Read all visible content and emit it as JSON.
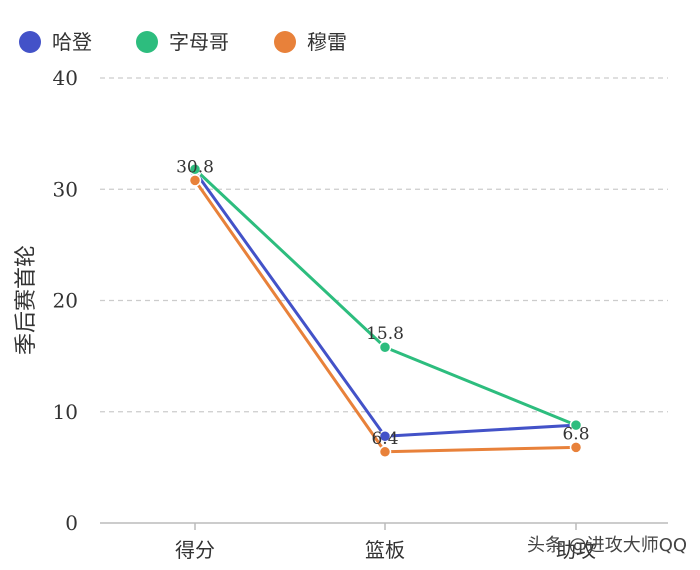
{
  "chart_data": {
    "type": "line",
    "title": "",
    "xlabel": "",
    "ylabel": "季后赛首轮",
    "categories": [
      "得分",
      "篮板",
      "助攻"
    ],
    "ylim": [
      0,
      40
    ],
    "yticks": [
      0,
      10,
      20,
      30,
      40
    ],
    "grid": true,
    "legend_position": "top-left",
    "series": [
      {
        "name": "哈登",
        "color": "#4352c8",
        "values": [
          31.6,
          7.8,
          8.8
        ]
      },
      {
        "name": "字母哥",
        "color": "#2dbd7e",
        "values": [
          31.8,
          15.8,
          8.8
        ]
      },
      {
        "name": "穆雷",
        "color": "#e8813a",
        "values": [
          30.8,
          6.4,
          6.8
        ]
      }
    ],
    "data_labels": [
      {
        "series": 2,
        "index": 0,
        "text": "30.8"
      },
      {
        "series": 1,
        "index": 1,
        "text": "15.8"
      },
      {
        "series": 2,
        "index": 1,
        "text": "6.4"
      },
      {
        "series": 2,
        "index": 2,
        "text": "6.8"
      }
    ]
  },
  "watermark": "头条 @进攻大师QQ"
}
